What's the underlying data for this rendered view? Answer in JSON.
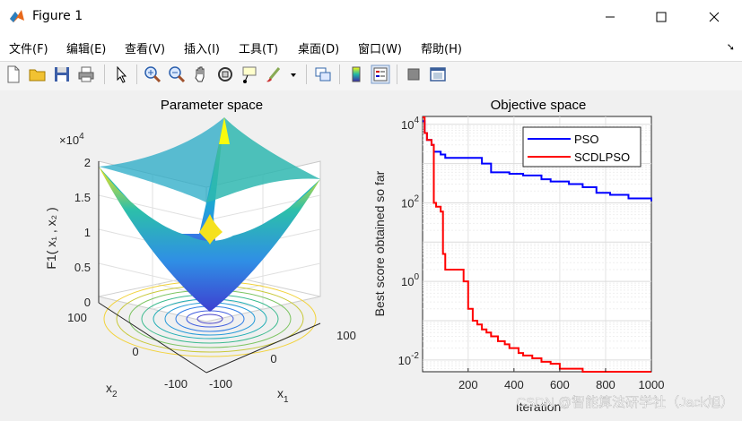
{
  "window": {
    "title": "Figure 1",
    "icon": "matlab-icon"
  },
  "menu": [
    "文件(F)",
    "编辑(E)",
    "查看(V)",
    "插入(I)",
    "工具(T)",
    "桌面(D)",
    "窗口(W)",
    "帮助(H)"
  ],
  "toolbar_icons": [
    "new-figure-icon",
    "open-file-icon",
    "save-icon",
    "print-icon",
    "pointer-icon",
    "zoom-in-icon",
    "zoom-out-icon",
    "pan-hand-icon",
    "rotate-3d-icon",
    "data-cursor-icon",
    "brush-icon",
    "brush-dropdown-icon",
    "link-plot-icon",
    "colorbar-icon",
    "legend-icon",
    "hide-plot-tools-icon",
    "show-plot-tools-icon"
  ],
  "left_plot": {
    "title": "Parameter space",
    "zlabel": "F1( x₁ , x₂ )",
    "xlabel": "x",
    "xlabel_sub": "1",
    "ylabel": "x",
    "ylabel_sub": "2",
    "exponent": "×10",
    "exponent_power": "4",
    "zticks": [
      "0",
      "0.5",
      "1",
      "1.5",
      "2"
    ],
    "xticks": [
      "-100",
      "0",
      "100"
    ],
    "yticks": [
      "100",
      "0",
      "-100"
    ]
  },
  "chart_data": {
    "type": "line",
    "title": "Objective space",
    "xlabel": "Iteration",
    "ylabel": "Best score obtained so far",
    "xlim": [
      1,
      1000
    ],
    "ylim_log10": [
      -2.3,
      4.2
    ],
    "yscale": "log",
    "xticks": [
      "200",
      "400",
      "600",
      "800",
      "1000"
    ],
    "yticks": [
      {
        "base": "10",
        "exp": "4"
      },
      {
        "base": "10",
        "exp": "2"
      },
      {
        "base": "10",
        "exp": "0"
      },
      {
        "base": "10",
        "exp": "-2"
      }
    ],
    "grid": true,
    "legend_position": "top-right",
    "series": [
      {
        "name": "PSO",
        "color": "#0000ff",
        "x": [
          1,
          10,
          20,
          40,
          50,
          80,
          100,
          200,
          260,
          300,
          340,
          380,
          440,
          520,
          560,
          640,
          700,
          760,
          820,
          900,
          1000
        ],
        "y": [
          12000,
          6000,
          4000,
          3000,
          2000,
          1700,
          1400,
          1400,
          1000,
          600,
          600,
          550,
          500,
          400,
          350,
          300,
          250,
          180,
          160,
          130,
          110
        ]
      },
      {
        "name": "SCDLPSO",
        "color": "#ff0000",
        "x": [
          1,
          10,
          20,
          40,
          50,
          60,
          80,
          90,
          100,
          150,
          180,
          200,
          220,
          240,
          260,
          280,
          300,
          330,
          360,
          380,
          420,
          440,
          480,
          520,
          560,
          600,
          700,
          800,
          1000
        ],
        "y": [
          15000,
          6000,
          4000,
          3000,
          100,
          80,
          60,
          5,
          2,
          2,
          1,
          0.2,
          0.1,
          0.08,
          0.06,
          0.05,
          0.04,
          0.03,
          0.025,
          0.02,
          0.015,
          0.013,
          0.011,
          0.009,
          0.008,
          0.006,
          0.005,
          0.005,
          0.005
        ]
      }
    ]
  },
  "watermark": "CSDN @智能算法研学社（Jack旭）"
}
